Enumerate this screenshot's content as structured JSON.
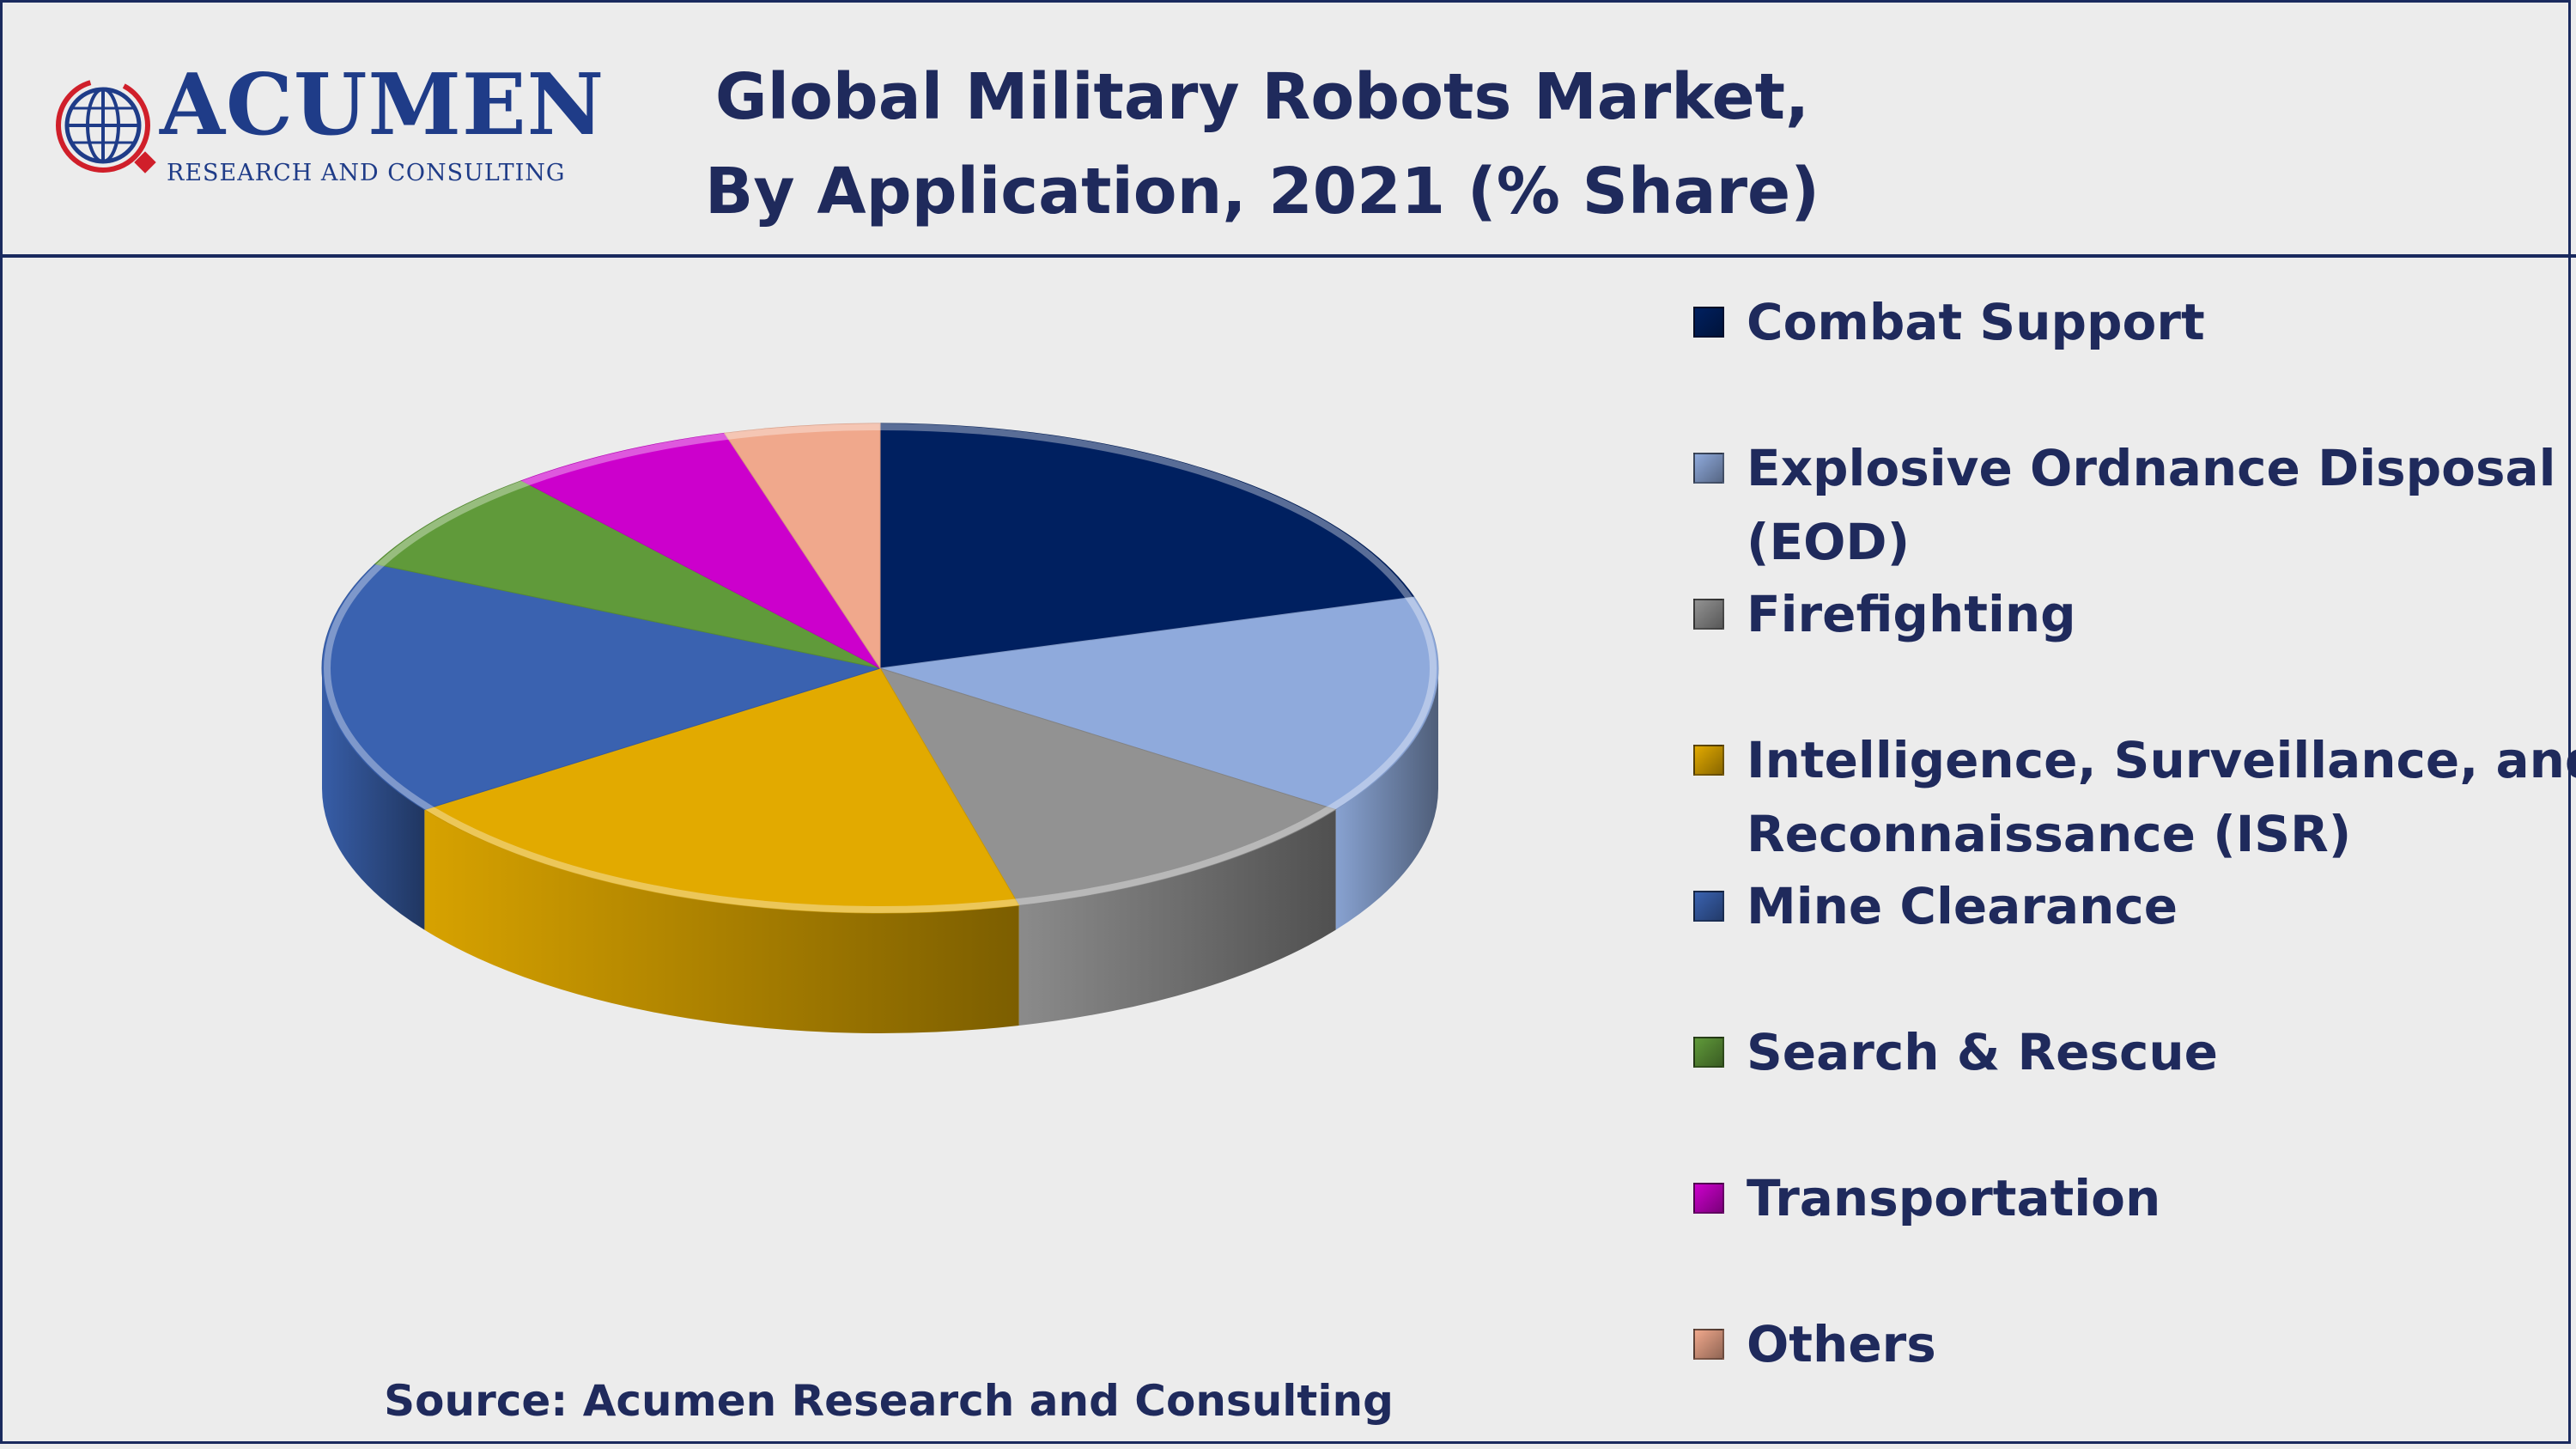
{
  "brand": {
    "name": "ACUMEN",
    "tagline": "RESEARCH AND CONSULTING"
  },
  "title_lines": [
    "Global Military Robots Market,",
    "By Application, 2021 (% Share)"
  ],
  "source": "Source: Acumen Research and Consulting",
  "chart_data": {
    "type": "pie",
    "style": "3d",
    "legend_position": "right",
    "categories": [
      "Combat Support",
      "Explosive Ordnance Disposal (EOD)",
      "Firefighting",
      "Intelligence, Surveillance, and Reconnaissance (ISR)",
      "Mine Clearance",
      "Search & Rescue",
      "Transportation",
      "Others"
    ],
    "legend_lines": [
      [
        "Combat Support"
      ],
      [
        "Explosive Ordnance Disposal",
        "(EOD)"
      ],
      [
        "Firefighting"
      ],
      [
        "Intelligence, Surveillance, and",
        "Reconnaissance (ISR)"
      ],
      [
        "Mine Clearance"
      ],
      [
        "Search & Rescue"
      ],
      [
        "Transportation"
      ],
      [
        "Others"
      ]
    ],
    "values": [
      20.3,
      14.5,
      11.2,
      19.2,
      16.8,
      6.9,
      6.6,
      4.5
    ],
    "colors": [
      "#002060",
      "#8faadc",
      "#929292",
      "#e2aa00",
      "#3a62b0",
      "#609a3a",
      "#cc00cc",
      "#f0a88c"
    ]
  }
}
